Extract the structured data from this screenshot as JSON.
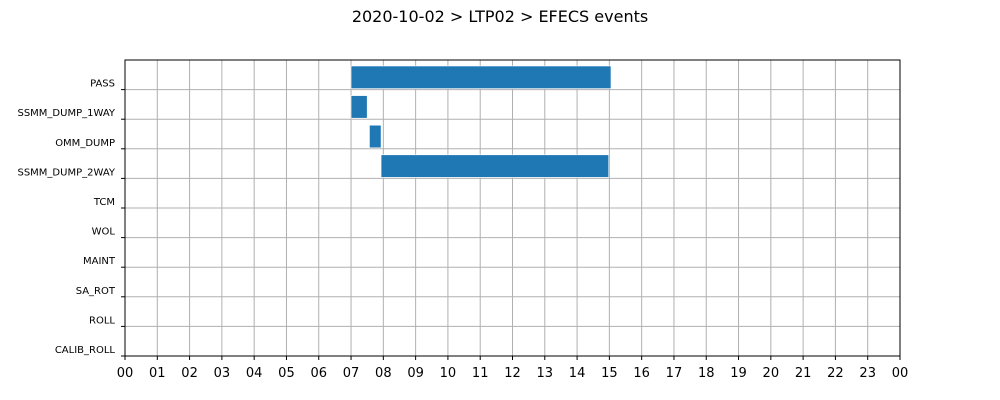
{
  "chart_data": {
    "type": "bar",
    "orientation": "horizontal-timeline",
    "title": "2020-10-02 > LTP02 > EFECS events",
    "xlabel": "",
    "ylabel": "",
    "xlim": [
      0,
      24
    ],
    "x_tick_labels": [
      "00",
      "01",
      "02",
      "03",
      "04",
      "05",
      "06",
      "07",
      "08",
      "09",
      "10",
      "11",
      "12",
      "13",
      "14",
      "15",
      "16",
      "17",
      "18",
      "19",
      "20",
      "21",
      "22",
      "23",
      "00"
    ],
    "categories": [
      "PASS",
      "SSMM_DUMP_1WAY",
      "OMM_DUMP",
      "SSMM_DUMP_2WAY",
      "TCM",
      "WOL",
      "MAINT",
      "SA_ROT",
      "ROLL",
      "CALIB_ROLL"
    ],
    "series": [
      {
        "color": "#1f77b4",
        "bars": [
          {
            "category": "PASS",
            "start": 7.0,
            "end": 15.05
          },
          {
            "category": "SSMM_DUMP_1WAY",
            "start": 7.0,
            "end": 7.5
          },
          {
            "category": "OMM_DUMP",
            "start": 7.57,
            "end": 7.93
          },
          {
            "category": "SSMM_DUMP_2WAY",
            "start": 7.93,
            "end": 14.98
          }
        ]
      }
    ],
    "grid": true
  }
}
